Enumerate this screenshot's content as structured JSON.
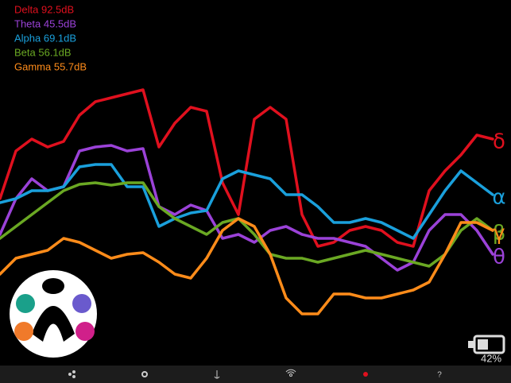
{
  "chart_data": {
    "type": "line",
    "x": [
      0,
      20,
      40,
      60,
      80,
      100,
      120,
      140,
      160,
      180,
      200,
      220,
      240,
      260,
      280,
      300,
      320,
      340,
      360,
      380,
      400,
      420,
      440,
      460,
      480,
      500,
      520,
      540,
      560,
      580,
      600,
      620
    ],
    "xlim": [
      0,
      643
    ],
    "ylim": [
      0,
      360
    ],
    "series": [
      {
        "name": "Delta 92.5dB",
        "symbol": "δ",
        "color": "#e0101e",
        "values": [
          210,
          270,
          285,
          275,
          282,
          315,
          332,
          337,
          342,
          347,
          275,
          305,
          325,
          320,
          230,
          190,
          310,
          325,
          310,
          190,
          150,
          155,
          170,
          175,
          170,
          155,
          150,
          220,
          245,
          265,
          290,
          285
        ]
      },
      {
        "name": "Theta 45.5dB",
        "symbol": "θ",
        "color": "#9b42d8",
        "values": [
          165,
          210,
          235,
          220,
          225,
          270,
          275,
          277,
          270,
          273,
          200,
          190,
          202,
          195,
          160,
          165,
          155,
          170,
          175,
          165,
          160,
          160,
          155,
          150,
          135,
          120,
          130,
          170,
          190,
          190,
          170,
          140
        ]
      },
      {
        "name": "Alpha 69.1dB",
        "symbol": "α",
        "color": "#1aa0dc",
        "values": [
          205,
          210,
          220,
          220,
          225,
          250,
          253,
          253,
          225,
          225,
          175,
          185,
          192,
          195,
          235,
          245,
          240,
          235,
          215,
          215,
          200,
          180,
          180,
          185,
          180,
          170,
          160,
          190,
          220,
          245,
          230,
          215
        ]
      },
      {
        "name": "Beta 56.1dB",
        "symbol": "β",
        "color": "#6aa823",
        "values": [
          160,
          175,
          190,
          205,
          220,
          228,
          230,
          227,
          230,
          230,
          200,
          185,
          175,
          165,
          180,
          185,
          165,
          140,
          135,
          135,
          130,
          135,
          140,
          145,
          140,
          135,
          130,
          125,
          140,
          170,
          185,
          170
        ]
      },
      {
        "name": "Gamma 55.7dB",
        "symbol": "γ",
        "color": "#ff8c1a",
        "values": [
          115,
          135,
          140,
          145,
          160,
          155,
          145,
          135,
          140,
          142,
          130,
          115,
          110,
          135,
          170,
          185,
          175,
          140,
          85,
          65,
          65,
          90,
          90,
          85,
          85,
          90,
          95,
          105,
          140,
          180,
          180,
          170
        ]
      }
    ]
  },
  "status": {
    "battery": "42%"
  }
}
